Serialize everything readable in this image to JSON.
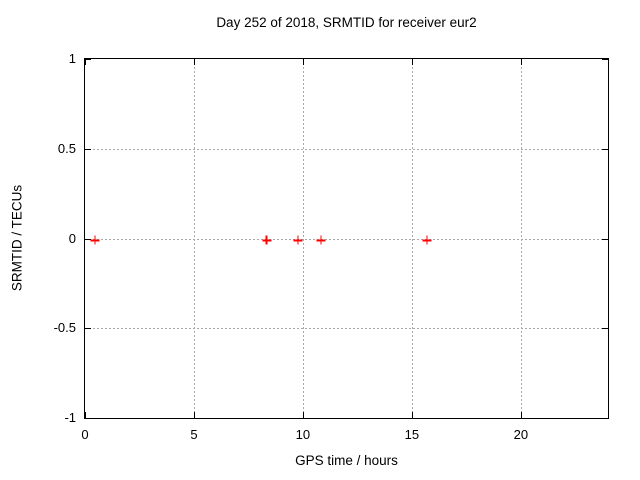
{
  "colors": {
    "background": "#ffffff",
    "border": "#000000",
    "grid": "#a8a8a8",
    "text": "#000000",
    "marker": "#ff0000"
  },
  "chart_data": {
    "type": "scatter",
    "title": "Day 252 of 2018, SRMTID for receiver eur2",
    "xlabel": "GPS time / hours",
    "ylabel": "SRMTID / TECUs",
    "xlim": [
      0,
      24
    ],
    "ylim": [
      -1,
      1
    ],
    "x_ticks": [
      0,
      5,
      10,
      15,
      20
    ],
    "y_ticks": [
      1,
      0.5,
      0,
      -0.5,
      -1
    ],
    "grid": true,
    "grid_style": "dotted",
    "legend": false,
    "marker": {
      "shape": "plus",
      "color": "#ff0000"
    },
    "series": [
      {
        "name": "SRMTID",
        "points": [
          {
            "x": 0.46,
            "y": -0.01
          },
          {
            "x": 8.33,
            "y": -0.01
          },
          {
            "x": 9.78,
            "y": -0.01
          },
          {
            "x": 10.83,
            "y": -0.01
          },
          {
            "x": 15.7,
            "y": -0.01
          }
        ]
      }
    ]
  }
}
